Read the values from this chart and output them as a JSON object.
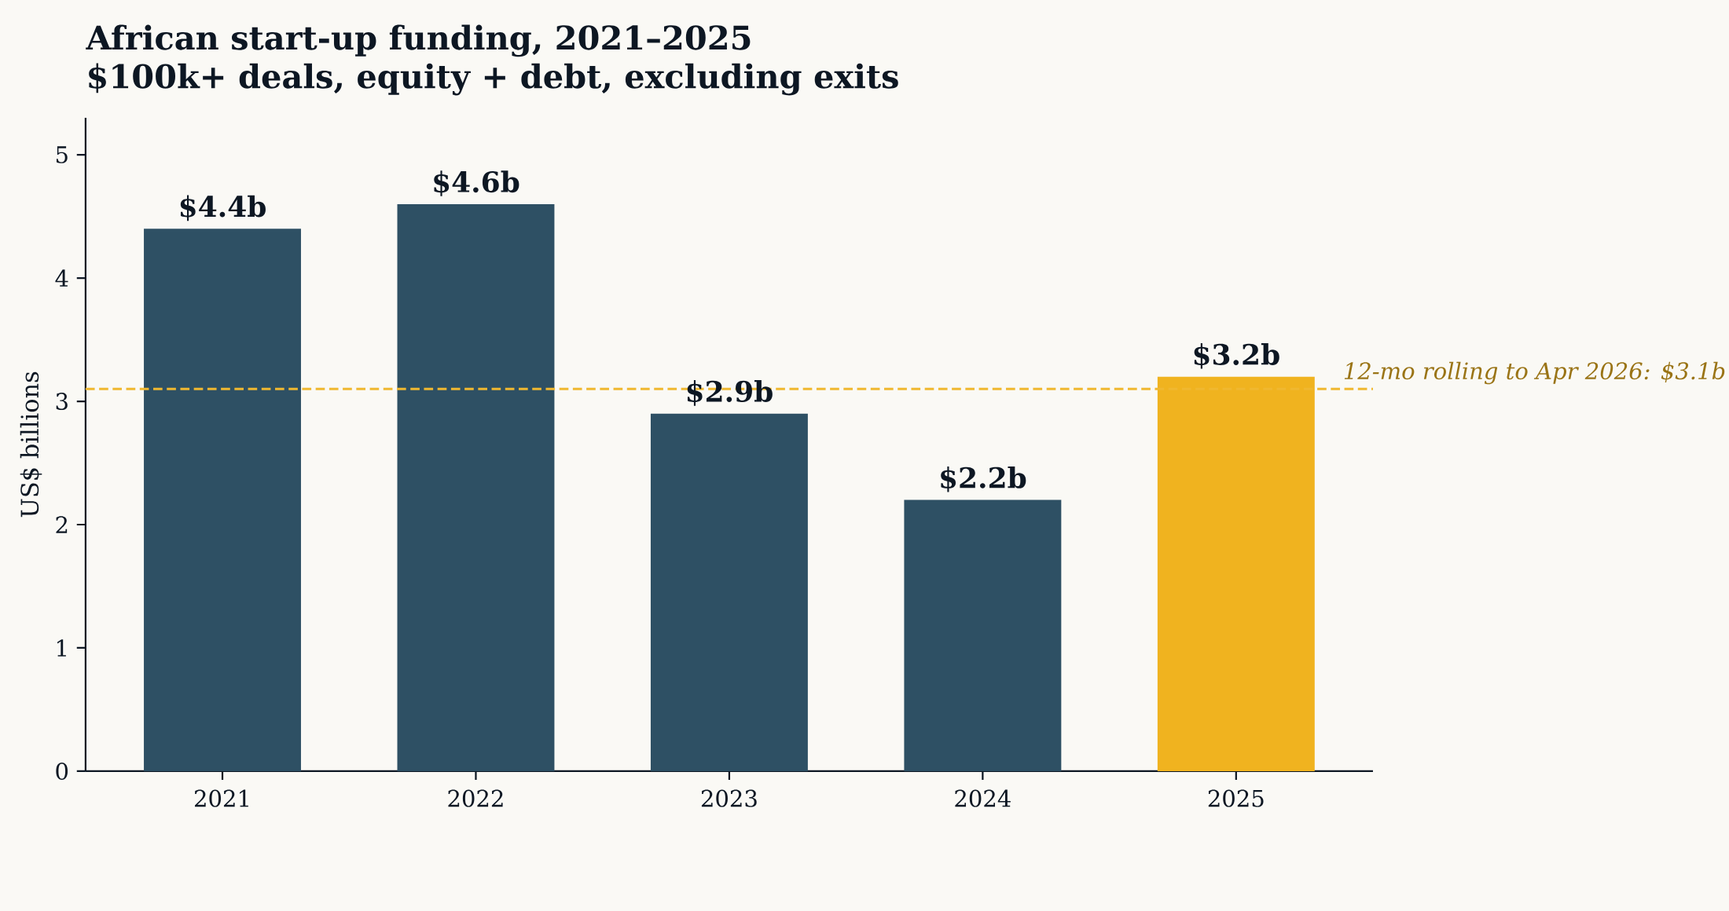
{
  "chart_data": {
    "type": "bar",
    "title": "African start-up funding, 2021–2025",
    "subtitle": "$100k+ deals, equity + debt, excluding exits",
    "ylabel": "US$ billions",
    "categories": [
      "2021",
      "2022",
      "2023",
      "2024",
      "2025"
    ],
    "values": [
      4.4,
      4.6,
      2.9,
      2.2,
      3.2
    ],
    "colors": [
      "#2e5064",
      "#2e5064",
      "#2e5064",
      "#2e5064",
      "#f0b31f"
    ],
    "value_labels": [
      "$4.4b",
      "$4.6b",
      "$2.9b",
      "$2.2b",
      "$3.2b"
    ],
    "ylim": [
      0,
      5.3
    ],
    "yticks": [
      0,
      1,
      2,
      3,
      4,
      5
    ],
    "ref_lines": [
      {
        "axis": "y",
        "value": 3.1,
        "label": "12-mo rolling to Apr 2026: $3.1b",
        "color": "#f0b830",
        "line_style": "dashed"
      }
    ]
  }
}
